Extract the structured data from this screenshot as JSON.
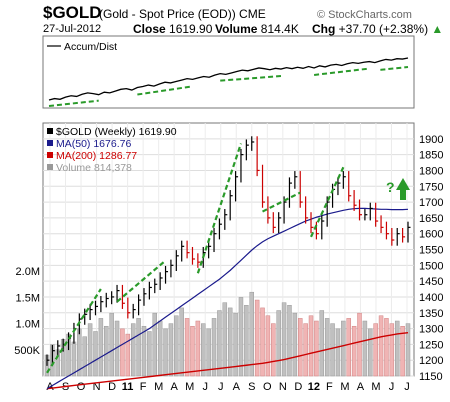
{
  "header": {
    "symbol": "$GOLD",
    "description": "(Gold - Spot Price (EOD)) CME",
    "copyright": "© StockCharts.com",
    "date": "27-Jul-2012",
    "close_label": "Close",
    "close_value": "1619.90",
    "volume_label": "Volume",
    "volume_value": "814.4K",
    "chg_label": "Chg",
    "chg_value": "+37.70 (+2.38%)"
  },
  "chart_data": [
    {
      "type": "line",
      "title": "Accum/Dist",
      "series": [
        {
          "name": "Accum/Dist",
          "values": [
            10,
            14,
            12,
            18,
            22,
            20,
            26,
            30,
            28,
            25,
            32,
            30,
            35,
            40,
            42,
            38,
            45,
            48,
            52,
            49,
            55,
            60,
            58,
            62,
            66,
            70,
            68,
            72,
            76,
            74,
            80,
            84,
            82,
            86,
            90,
            94,
            92,
            96,
            100,
            98,
            95,
            99,
            97,
            101,
            98,
            102,
            99,
            104,
            100,
            106,
            103,
            108,
            110,
            107,
            112,
            115,
            113,
            116,
            118,
            115,
            120,
            124,
            122,
            126,
            125,
            128
          ]
        }
      ]
    },
    {
      "type": "line",
      "title": "$GOLD (Weekly) 1619.90",
      "ylim": [
        1150,
        1950
      ],
      "y_ticks": [
        1900,
        1850,
        1800,
        1750,
        1700,
        1650,
        1600,
        1550,
        1500,
        1450,
        1400,
        1350,
        1300,
        1250,
        1200,
        1150
      ],
      "x_ticks": [
        "A",
        "S",
        "O",
        "N",
        "D",
        "11",
        "F",
        "M",
        "A",
        "M",
        "J",
        "J",
        "A",
        "S",
        "O",
        "N",
        "D",
        "12",
        "F",
        "M",
        "A",
        "M",
        "J",
        "J"
      ],
      "x_bold_ticks": [
        "11",
        "12"
      ],
      "legend": [
        {
          "label": "$GOLD (Weekly) 1619.90",
          "color": "#000000"
        },
        {
          "label": "MA(50) 1676.76",
          "color": "#1a1a8c"
        },
        {
          "label": "MA(200) 1286.77",
          "color": "#cc0000"
        },
        {
          "label": "Volume 814,378",
          "color": "#999999"
        }
      ],
      "price": [
        1200,
        1230,
        1245,
        1250,
        1270,
        1300,
        1330,
        1345,
        1360,
        1370,
        1385,
        1395,
        1400,
        1420,
        1380,
        1350,
        1360,
        1390,
        1410,
        1430,
        1440,
        1460,
        1480,
        1500,
        1530,
        1560,
        1540,
        1520,
        1510,
        1540,
        1560,
        1600,
        1630,
        1660,
        1720,
        1780,
        1850,
        1880,
        1890,
        1800,
        1700,
        1650,
        1620,
        1650,
        1700,
        1760,
        1780,
        1700,
        1650,
        1620,
        1600,
        1640,
        1700,
        1740,
        1760,
        1780,
        1720,
        1690,
        1660,
        1660,
        1680,
        1640,
        1620,
        1600,
        1580,
        1600,
        1590,
        1620
      ],
      "ma50": [
        1110,
        1120,
        1130,
        1140,
        1150,
        1160,
        1170,
        1180,
        1190,
        1200,
        1210,
        1220,
        1230,
        1240,
        1250,
        1260,
        1270,
        1280,
        1290,
        1300,
        1312,
        1324,
        1336,
        1348,
        1360,
        1372,
        1384,
        1396,
        1408,
        1420,
        1432,
        1444,
        1456,
        1470,
        1484,
        1500,
        1516,
        1532,
        1548,
        1562,
        1574,
        1584,
        1592,
        1600,
        1608,
        1616,
        1624,
        1632,
        1640,
        1646,
        1652,
        1657,
        1662,
        1666,
        1670,
        1674,
        1677,
        1679,
        1680,
        1680,
        1679,
        1678,
        1677,
        1677,
        1676,
        1676,
        1676,
        1677
      ],
      "ma200": [
        1110,
        1112,
        1114,
        1116,
        1118,
        1120,
        1122,
        1124,
        1126,
        1128,
        1130,
        1132,
        1134,
        1136,
        1138,
        1140,
        1142,
        1144,
        1146,
        1148,
        1150,
        1152,
        1154,
        1156,
        1158,
        1160,
        1162,
        1164,
        1166,
        1168,
        1170,
        1172,
        1174,
        1176,
        1178,
        1180,
        1182,
        1184,
        1186,
        1188,
        1190,
        1193,
        1196,
        1199,
        1202,
        1206,
        1210,
        1214,
        1218,
        1222,
        1226,
        1230,
        1234,
        1238,
        1242,
        1246,
        1250,
        1254,
        1258,
        1262,
        1266,
        1270,
        1274,
        1277,
        1280,
        1283,
        1285,
        1287
      ],
      "volume": [
        400,
        600,
        500,
        700,
        800,
        650,
        900,
        750,
        1000,
        850,
        1100,
        950,
        1200,
        1050,
        900,
        800,
        1000,
        1100,
        950,
        850,
        1200,
        1050,
        900,
        1000,
        1150,
        1300,
        1100,
        950,
        1050,
        1000,
        900,
        1100,
        1250,
        1400,
        1300,
        1200,
        1500,
        1350,
        1600,
        1450,
        1300,
        1150,
        1000,
        1250,
        1400,
        1350,
        1200,
        1100,
        1000,
        1150,
        1050,
        1250,
        1100,
        1000,
        900,
        1050,
        1100,
        950,
        1200,
        1050,
        900,
        1000,
        1150,
        1100,
        1000,
        1050,
        950,
        1000
      ],
      "volume_axis": [
        "2.0M",
        "1.5M",
        "1.0M",
        "500K"
      ]
    }
  ]
}
